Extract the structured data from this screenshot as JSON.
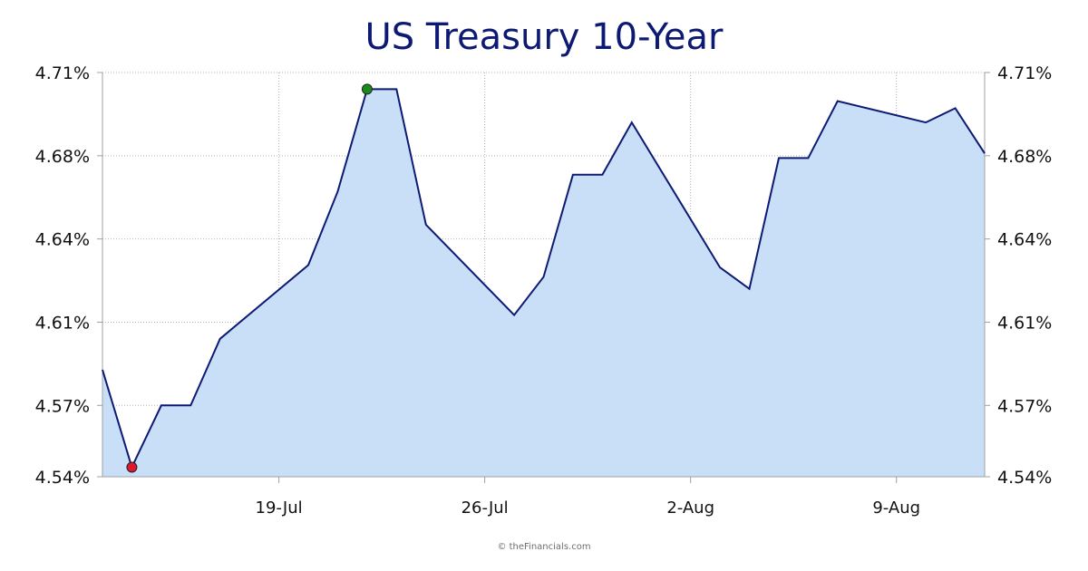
{
  "chart_data": {
    "type": "area",
    "title": "US Treasury 10-Year",
    "xlabel": "",
    "ylabel": "",
    "ylim": [
      4.54,
      4.71
    ],
    "y_ticks": [
      "4.71%",
      "4.68%",
      "4.64%",
      "4.61%",
      "4.57%",
      "4.54%"
    ],
    "y_tick_values": [
      4.71,
      4.675,
      4.64,
      4.605,
      4.57,
      4.54
    ],
    "x_ticks": [
      {
        "label": "19-Jul",
        "x": "2024-07-19"
      },
      {
        "label": "26-Jul",
        "x": "2024-07-26"
      },
      {
        "label": "2-Aug",
        "x": "2024-08-02"
      },
      {
        "label": "9-Aug",
        "x": "2024-08-09"
      }
    ],
    "xlim": [
      "2024-07-13",
      "2024-08-12"
    ],
    "grid": true,
    "axes": "left and right",
    "series": [
      {
        "points": [
          {
            "x": "2024-07-13",
            "y": 4.585
          },
          {
            "x": "2024-07-14",
            "y": 4.544
          },
          {
            "x": "2024-07-15",
            "y": 4.57
          },
          {
            "x": "2024-07-16",
            "y": 4.57
          },
          {
            "x": "2024-07-17",
            "y": 4.598
          },
          {
            "x": "2024-07-20",
            "y": 4.629
          },
          {
            "x": "2024-07-21",
            "y": 4.66
          },
          {
            "x": "2024-07-22",
            "y": 4.703
          },
          {
            "x": "2024-07-23",
            "y": 4.703
          },
          {
            "x": "2024-07-24",
            "y": 4.646
          },
          {
            "x": "2024-07-27",
            "y": 4.608
          },
          {
            "x": "2024-07-28",
            "y": 4.624
          },
          {
            "x": "2024-07-29",
            "y": 4.667
          },
          {
            "x": "2024-07-30",
            "y": 4.667
          },
          {
            "x": "2024-07-31",
            "y": 4.689
          },
          {
            "x": "2024-08-03",
            "y": 4.628
          },
          {
            "x": "2024-08-04",
            "y": 4.619
          },
          {
            "x": "2024-08-05",
            "y": 4.674
          },
          {
            "x": "2024-08-06",
            "y": 4.674
          },
          {
            "x": "2024-08-07",
            "y": 4.698
          },
          {
            "x": "2024-08-10",
            "y": 4.689
          },
          {
            "x": "2024-08-11",
            "y": 4.695
          },
          {
            "x": "2024-08-12",
            "y": 4.676
          }
        ]
      }
    ],
    "markers": {
      "low": {
        "x": "2024-07-14",
        "y": 4.544,
        "color": "#e0182d"
      },
      "high": {
        "x": "2024-07-22",
        "y": 4.703,
        "color": "#1a8a1a"
      }
    },
    "colors": {
      "line": "#0d1a73",
      "fill": "#c9dff7",
      "grid": "#b4b4b4",
      "axis": "#a0a0a0",
      "title": "#0d1a73"
    }
  },
  "footer": {
    "credit": "© theFinancials.com"
  }
}
